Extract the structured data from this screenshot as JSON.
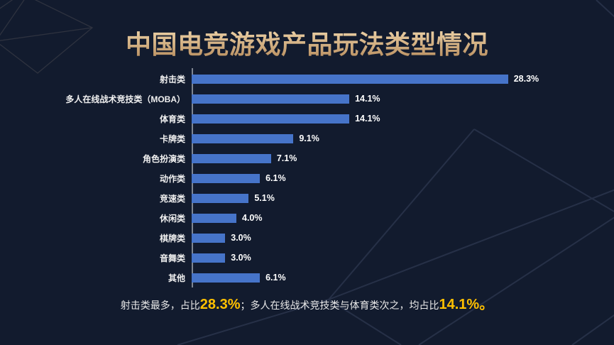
{
  "title": "中国电竞游戏产品玩法类型情况",
  "chart_data": {
    "type": "bar",
    "orientation": "horizontal",
    "title": "中国电竞游戏产品玩法类型情况",
    "categories": [
      "射击类",
      "多人在线战术竞技类（MOBA）",
      "体育类",
      "卡牌类",
      "角色扮演类",
      "动作类",
      "竞速类",
      "休闲类",
      "棋牌类",
      "音舞类",
      "其他"
    ],
    "values": [
      28.3,
      14.1,
      14.1,
      9.1,
      7.1,
      6.1,
      5.1,
      4.0,
      3.0,
      3.0,
      6.1
    ],
    "value_labels": [
      "28.3%",
      "14.1%",
      "14.1%",
      "9.1%",
      "7.1%",
      "6.1%",
      "5.1%",
      "4.0%",
      "3.0%",
      "3.0%",
      "6.1%"
    ],
    "xlim": [
      0,
      30
    ],
    "grid": false,
    "legend": false,
    "bar_color": "#4674c9"
  },
  "caption": {
    "segments": [
      {
        "text": "射击类最多，占比",
        "em": false
      },
      {
        "text": "28.3%",
        "em": true
      },
      {
        "text": "；",
        "em": false
      },
      {
        "text": "多人在线战术竞技类与体育类次之，均占比",
        "em": false
      },
      {
        "text": "14.1%",
        "em": true
      },
      {
        "text": "。",
        "em": true
      }
    ],
    "highlight_color": "#ffc000"
  },
  "colors": {
    "background": "#121b2e",
    "bar": "#4674c9",
    "title_gold": "#d2ac79",
    "text": "#f0f0f0",
    "highlight": "#ffc000"
  }
}
